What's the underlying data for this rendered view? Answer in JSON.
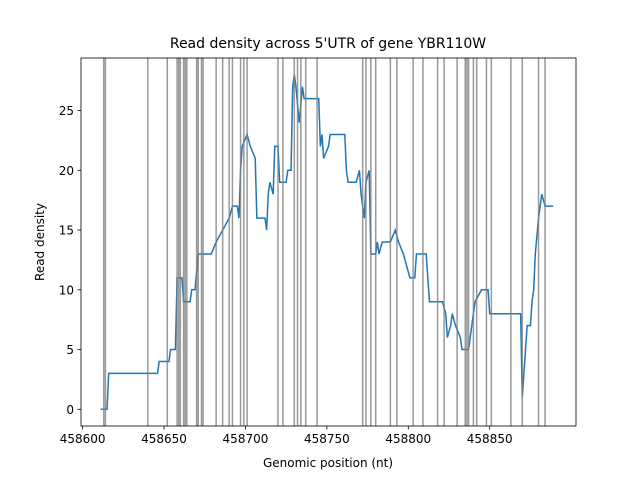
{
  "chart_data": {
    "type": "line",
    "title": "Read density across 5'UTR of gene YBR110W",
    "x_label": "Genomic position (nt)",
    "y_label": "Read density",
    "x": [
      458611,
      458615,
      458616,
      458646,
      458647,
      458653,
      458654,
      458657,
      458658,
      458661,
      458662,
      458666,
      458667,
      458669,
      458671,
      458679,
      458682,
      458686,
      458690,
      458692,
      458695,
      458696,
      458697,
      458698,
      458701,
      458703,
      458706,
      458707,
      458712,
      458713,
      458714,
      458715,
      458717,
      458718,
      458720,
      458721,
      458725,
      458726,
      458728,
      458729,
      458730,
      458731,
      458733,
      458735,
      458736,
      458745,
      458746,
      458747,
      458748,
      458751,
      458752,
      458761,
      458762,
      458763,
      458768,
      458770,
      458771,
      458773,
      458774,
      458776,
      458777,
      458780,
      458781,
      458782,
      458784,
      458789,
      458792,
      458794,
      458797,
      458799,
      458801,
      458804,
      458805,
      458811,
      458813,
      458821,
      458823,
      458824,
      458826,
      458827,
      458829,
      458832,
      458833,
      458837,
      458839,
      458841,
      458845,
      458849,
      458850,
      458869,
      458870,
      458873,
      458875,
      458876,
      458877,
      458878,
      458880,
      458882,
      458884,
      458889
    ],
    "series": [
      {
        "name": "Read density",
        "color": "#1f77b4",
        "values": [
          0,
          0,
          3,
          3,
          4,
          4,
          5,
          5,
          11,
          11,
          9,
          9,
          10,
          10,
          13,
          13,
          14,
          15,
          16,
          17,
          17,
          16,
          20,
          22,
          23,
          22,
          21,
          16,
          16,
          15,
          18,
          19,
          18,
          22,
          22,
          19,
          19,
          20,
          20,
          27,
          28,
          27,
          24,
          27,
          26,
          26,
          22,
          23,
          21,
          22,
          23,
          23,
          20,
          19,
          19,
          20,
          18,
          16,
          19,
          20,
          13,
          13,
          14,
          13,
          14,
          14,
          15,
          14,
          13,
          12,
          11,
          11,
          13,
          13,
          9,
          9,
          8,
          6,
          7,
          8,
          7,
          6,
          5,
          5,
          7,
          9,
          10,
          10,
          8,
          8,
          1,
          7,
          7,
          9,
          10,
          13,
          16,
          18,
          17,
          17
        ]
      }
    ],
    "vlines": [
      458613,
      458614,
      458640,
      458652,
      458658,
      458659,
      458660,
      458662,
      458663,
      458664,
      458670,
      458671,
      458673,
      458674,
      458682,
      458686,
      458690,
      458692,
      458697,
      458699,
      458701,
      458720,
      458723,
      458730,
      458732,
      458734,
      458737,
      458744,
      458772,
      458774,
      458777,
      458780,
      458789,
      458793,
      458803,
      458809,
      458818,
      458822,
      458830,
      458835,
      458836,
      458837,
      458840,
      458842,
      458848,
      458851,
      458863,
      458870,
      458880,
      458884
    ],
    "vline_color": "#808080",
    "xlim": [
      458599,
      458903
    ],
    "ylim": [
      -1.4,
      29.4
    ],
    "xticks": [
      458600,
      458650,
      458700,
      458750,
      458800,
      458850
    ],
    "yticks": [
      0,
      5,
      10,
      15,
      20,
      25
    ]
  }
}
